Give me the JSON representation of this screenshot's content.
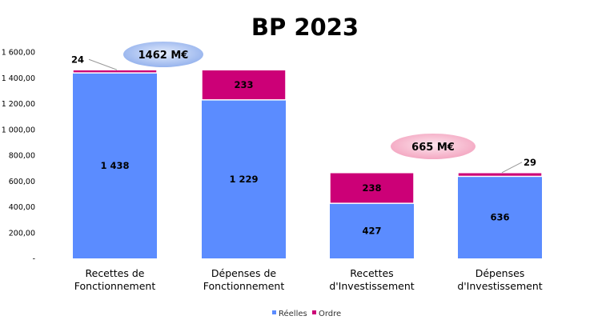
{
  "chart_data": {
    "type": "bar",
    "stacked": true,
    "title": "BP 2023",
    "categories": [
      [
        "Recettes de",
        "Fonctionnement"
      ],
      [
        "Dépenses de",
        "Fonctionnement"
      ],
      [
        "Recettes",
        "d'Investissement"
      ],
      [
        "Dépenses",
        "d'Investissement"
      ]
    ],
    "series": [
      {
        "name": "Réelles",
        "color": "#5B8CFF",
        "values": [
          1438,
          1229,
          427,
          636
        ],
        "labels": [
          "1 438",
          "1 229",
          "427",
          "636"
        ]
      },
      {
        "name": "Ordre",
        "color": "#CC0077",
        "values": [
          24,
          233,
          238,
          29
        ],
        "labels": [
          "24",
          "233",
          "238",
          "29"
        ]
      }
    ],
    "ylim": [
      0,
      1600
    ],
    "yticks": [
      0,
      200,
      400,
      600,
      800,
      1000,
      1200,
      1400,
      1600
    ],
    "ytick_labels": [
      "-",
      "200,00",
      "400,00",
      "600,00",
      "800,00",
      "1 000,00",
      "1 200,00",
      "1 400,00",
      "1 600,00"
    ],
    "annotations": [
      {
        "text": "1462 M€",
        "color": "#9DB8F0"
      },
      {
        "text": "665 M€",
        "color": "#F7B6CB"
      }
    ],
    "legend": {
      "position": "bottom"
    },
    "grid": false
  }
}
